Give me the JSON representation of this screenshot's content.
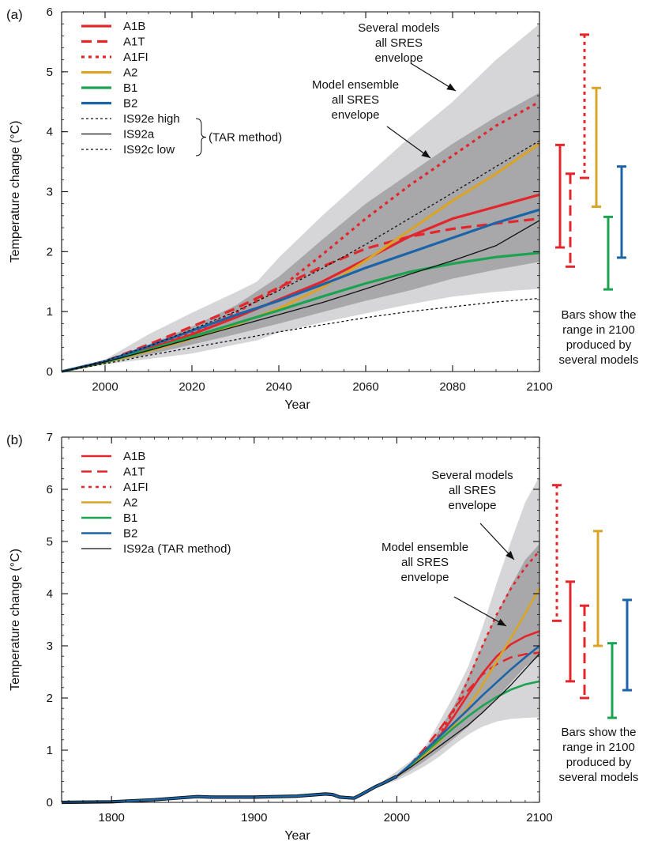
{
  "chart_data": [
    {
      "type": "line",
      "panel_label": "(a)",
      "title": "",
      "xlabel": "Year",
      "ylabel": "Temperature change (°C)",
      "xlim": [
        1990,
        2100
      ],
      "ylim": [
        0,
        6
      ],
      "xticks": [
        2000,
        2020,
        2040,
        2060,
        2080,
        2100
      ],
      "yticks": [
        0,
        1,
        2,
        3,
        4,
        5,
        6
      ],
      "legend_position": "top-left",
      "series": [
        {
          "name": "A1B",
          "color": "#e3262b",
          "dash": "solid",
          "width": 3.2,
          "x": [
            1990,
            2000,
            2010,
            2020,
            2030,
            2040,
            2050,
            2060,
            2070,
            2080,
            2090,
            2100
          ],
          "values": [
            0,
            0.16,
            0.38,
            0.62,
            0.9,
            1.2,
            1.5,
            1.87,
            2.25,
            2.55,
            2.75,
            2.95
          ]
        },
        {
          "name": "A1T",
          "color": "#e3262b",
          "dash": "long",
          "width": 3.2,
          "x": [
            1990,
            2000,
            2010,
            2020,
            2030,
            2040,
            2050,
            2060,
            2070,
            2080,
            2090,
            2100
          ],
          "values": [
            0,
            0.17,
            0.45,
            0.75,
            1.05,
            1.4,
            1.75,
            2.05,
            2.25,
            2.38,
            2.47,
            2.55
          ]
        },
        {
          "name": "A1FI",
          "color": "#e3262b",
          "dash": "dot",
          "width": 3.2,
          "x": [
            1990,
            2000,
            2010,
            2020,
            2030,
            2040,
            2050,
            2060,
            2070,
            2080,
            2090,
            2100
          ],
          "values": [
            0,
            0.16,
            0.38,
            0.65,
            0.98,
            1.38,
            1.95,
            2.55,
            3.1,
            3.6,
            4.1,
            4.5
          ]
        },
        {
          "name": "A2",
          "color": "#d9a428",
          "dash": "solid",
          "width": 3.2,
          "x": [
            1990,
            2000,
            2010,
            2020,
            2030,
            2040,
            2050,
            2060,
            2070,
            2080,
            2090,
            2100
          ],
          "values": [
            0,
            0.15,
            0.34,
            0.55,
            0.78,
            1.05,
            1.4,
            1.85,
            2.35,
            2.85,
            3.3,
            3.8
          ]
        },
        {
          "name": "B1",
          "color": "#1ba351",
          "dash": "solid",
          "width": 3.2,
          "x": [
            1990,
            2000,
            2010,
            2020,
            2030,
            2040,
            2050,
            2060,
            2070,
            2080,
            2090,
            2100
          ],
          "values": [
            0,
            0.16,
            0.36,
            0.58,
            0.8,
            1.02,
            1.25,
            1.47,
            1.66,
            1.8,
            1.91,
            1.98
          ]
        },
        {
          "name": "B2",
          "color": "#1c64a8",
          "dash": "solid",
          "width": 3.2,
          "x": [
            1990,
            2000,
            2010,
            2020,
            2030,
            2040,
            2050,
            2060,
            2070,
            2080,
            2090,
            2100
          ],
          "values": [
            0,
            0.17,
            0.42,
            0.68,
            0.94,
            1.18,
            1.45,
            1.73,
            1.98,
            2.23,
            2.48,
            2.7
          ]
        },
        {
          "name": "IS92e high",
          "color": "#111111",
          "dash": "thin-dot",
          "width": 1.3,
          "x": [
            1990,
            2000,
            2010,
            2020,
            2030,
            2040,
            2050,
            2060,
            2070,
            2080,
            2090,
            2100
          ],
          "values": [
            0,
            0.18,
            0.42,
            0.7,
            1.0,
            1.35,
            1.72,
            2.12,
            2.55,
            2.98,
            3.42,
            3.85
          ]
        },
        {
          "name": "IS92a",
          "color": "#111111",
          "dash": "solid",
          "width": 1.3,
          "x": [
            1990,
            2000,
            2010,
            2020,
            2030,
            2040,
            2050,
            2060,
            2070,
            2080,
            2090,
            2100
          ],
          "values": [
            0,
            0.16,
            0.35,
            0.55,
            0.75,
            0.95,
            1.15,
            1.38,
            1.62,
            1.85,
            2.1,
            2.52
          ]
        },
        {
          "name": "IS92c low",
          "color": "#111111",
          "dash": "thin-dot",
          "width": 1.3,
          "x": [
            1990,
            2000,
            2010,
            2020,
            2030,
            2040,
            2050,
            2060,
            2070,
            2080,
            2090,
            2100
          ],
          "values": [
            0,
            0.13,
            0.27,
            0.4,
            0.53,
            0.66,
            0.78,
            0.9,
            1.0,
            1.08,
            1.16,
            1.22
          ]
        }
      ],
      "legend_group_note": "(TAR method)",
      "envelopes": [
        {
          "name": "Several models all SRES envelope",
          "color": "#d6d6d8",
          "x": [
            1990,
            2000,
            2010,
            2020,
            2030,
            2035,
            2040,
            2050,
            2060,
            2070,
            2080,
            2090,
            2100
          ],
          "upper": [
            0,
            0.2,
            0.62,
            0.98,
            1.32,
            1.5,
            1.9,
            2.6,
            3.25,
            3.9,
            4.5,
            5.2,
            5.8
          ],
          "lower": [
            0,
            0.12,
            0.21,
            0.3,
            0.45,
            0.52,
            0.65,
            0.82,
            0.97,
            1.12,
            1.25,
            1.33,
            1.38
          ]
        },
        {
          "name": "Model ensemble all SRES envelope",
          "color": "#a8a8ab",
          "x": [
            1990,
            2000,
            2010,
            2020,
            2030,
            2040,
            2050,
            2060,
            2070,
            2080,
            2090,
            2100
          ],
          "upper": [
            0,
            0.18,
            0.45,
            0.75,
            1.1,
            1.58,
            2.2,
            2.8,
            3.3,
            3.8,
            4.25,
            4.65
          ],
          "lower": [
            0,
            0.14,
            0.28,
            0.45,
            0.62,
            0.8,
            0.99,
            1.18,
            1.35,
            1.55,
            1.7,
            1.83
          ]
        }
      ],
      "range_bars_2100": [
        {
          "series": "A1B",
          "low": 2.07,
          "high": 3.78
        },
        {
          "series": "A1T",
          "low": 1.75,
          "high": 3.3
        },
        {
          "series": "A1FI",
          "low": 3.23,
          "high": 5.62
        },
        {
          "series": "A2",
          "low": 2.75,
          "high": 4.73
        },
        {
          "series": "B1",
          "low": 1.37,
          "high": 2.58
        },
        {
          "series": "B2",
          "low": 1.9,
          "high": 3.42
        }
      ],
      "annotations": {
        "several_models": [
          "Several models",
          "all SRES",
          "envelope"
        ],
        "ensemble": [
          "Model ensemble",
          "all SRES",
          "envelope"
        ],
        "bars_note": [
          "Bars show the",
          "range in 2100",
          "produced by",
          "several models"
        ]
      }
    },
    {
      "type": "line",
      "panel_label": "(b)",
      "title": "",
      "xlabel": "Year",
      "ylabel": "Temperature change (°C)",
      "xlim": [
        1765,
        2100
      ],
      "ylim": [
        0,
        7
      ],
      "xticks": [
        1800,
        1900,
        2000,
        2100
      ],
      "yticks": [
        0,
        1,
        2,
        3,
        4,
        5,
        6,
        7
      ],
      "legend_position": "top-left",
      "series": [
        {
          "name": "A1B",
          "color": "#e3262b",
          "dash": "solid",
          "width": 2.6,
          "x": [
            2000,
            2010,
            2020,
            2030,
            2040,
            2050,
            2060,
            2070,
            2080,
            2090,
            2100
          ],
          "values": [
            0.5,
            0.72,
            0.97,
            1.27,
            1.65,
            2.07,
            2.47,
            2.8,
            3.03,
            3.18,
            3.28
          ]
        },
        {
          "name": "A1T",
          "color": "#e3262b",
          "dash": "long",
          "width": 2.6,
          "x": [
            2000,
            2010,
            2020,
            2030,
            2040,
            2050,
            2060,
            2070,
            2080,
            2090,
            2100
          ],
          "values": [
            0.5,
            0.74,
            1.05,
            1.4,
            1.78,
            2.15,
            2.45,
            2.65,
            2.78,
            2.84,
            2.87
          ]
        },
        {
          "name": "A1FI",
          "color": "#e3262b",
          "dash": "dot",
          "width": 2.6,
          "x": [
            2000,
            2010,
            2020,
            2030,
            2040,
            2050,
            2060,
            2070,
            2080,
            2090,
            2100
          ],
          "values": [
            0.5,
            0.72,
            0.98,
            1.3,
            1.75,
            2.35,
            3.0,
            3.6,
            4.1,
            4.5,
            4.82
          ]
        },
        {
          "name": "A2",
          "color": "#d9a428",
          "dash": "solid",
          "width": 2.6,
          "x": [
            2000,
            2010,
            2020,
            2030,
            2040,
            2050,
            2060,
            2070,
            2080,
            2090,
            2100
          ],
          "values": [
            0.5,
            0.7,
            0.92,
            1.17,
            1.47,
            1.83,
            2.25,
            2.7,
            3.15,
            3.62,
            4.1
          ]
        },
        {
          "name": "B1",
          "color": "#1ba351",
          "dash": "solid",
          "width": 2.6,
          "x": [
            2000,
            2010,
            2020,
            2030,
            2040,
            2050,
            2060,
            2070,
            2080,
            2090,
            2100
          ],
          "values": [
            0.5,
            0.72,
            0.96,
            1.2,
            1.43,
            1.65,
            1.85,
            2.02,
            2.16,
            2.26,
            2.32
          ]
        },
        {
          "name": "B2",
          "color": "#1c64a8",
          "dash": "solid",
          "width": 2.6,
          "x": [
            2000,
            2010,
            2020,
            2030,
            2040,
            2050,
            2060,
            2070,
            2080,
            2090,
            2100
          ],
          "values": [
            0.5,
            0.74,
            1.0,
            1.26,
            1.52,
            1.78,
            2.05,
            2.3,
            2.55,
            2.78,
            3.0
          ]
        },
        {
          "name": "IS92a (TAR method)",
          "color": "#111111",
          "dash": "solid",
          "width": 1.3,
          "x": [
            2000,
            2010,
            2020,
            2030,
            2040,
            2050,
            2060,
            2070,
            2080,
            2090,
            2100
          ],
          "values": [
            0.5,
            0.68,
            0.88,
            1.08,
            1.28,
            1.48,
            1.72,
            1.98,
            2.25,
            2.55,
            2.85
          ]
        }
      ],
      "historical": {
        "name": "historical",
        "color": "#1c64a8",
        "x": [
          1765,
          1800,
          1830,
          1860,
          1870,
          1880,
          1900,
          1930,
          1950,
          1955,
          1960,
          1970,
          1975,
          1985,
          1990,
          2000
        ],
        "values": [
          0.0,
          0.01,
          0.05,
          0.11,
          0.1,
          0.1,
          0.1,
          0.12,
          0.16,
          0.15,
          0.1,
          0.08,
          0.15,
          0.3,
          0.36,
          0.5
        ]
      },
      "envelopes": [
        {
          "name": "Several models all SRES envelope",
          "color": "#d6d6d8",
          "x": [
            1990,
            2000,
            2010,
            2020,
            2030,
            2040,
            2050,
            2060,
            2070,
            2080,
            2090,
            2100
          ],
          "upper": [
            0.4,
            0.6,
            0.8,
            1.08,
            1.55,
            2.05,
            2.6,
            3.35,
            4.2,
            5.0,
            5.75,
            6.25
          ],
          "lower": [
            0.33,
            0.42,
            0.55,
            0.7,
            0.88,
            1.1,
            1.3,
            1.45,
            1.55,
            1.6,
            1.62,
            1.63
          ]
        },
        {
          "name": "Model ensemble all SRES envelope",
          "color": "#a8a8ab",
          "x": [
            1990,
            2000,
            2010,
            2020,
            2030,
            2040,
            2050,
            2060,
            2070,
            2080,
            2090,
            2100
          ],
          "upper": [
            0.38,
            0.52,
            0.76,
            1.03,
            1.4,
            1.85,
            2.4,
            3.0,
            3.6,
            4.15,
            4.65,
            4.95
          ],
          "lower": [
            0.34,
            0.46,
            0.62,
            0.8,
            1.0,
            1.22,
            1.45,
            1.72,
            2.0,
            2.3,
            2.6,
            2.8
          ]
        }
      ],
      "range_bars_2100": [
        {
          "series": "A1FI",
          "low": 3.48,
          "high": 6.08
        },
        {
          "series": "A1B",
          "low": 2.32,
          "high": 4.23
        },
        {
          "series": "A1T",
          "low": 2.0,
          "high": 3.77
        },
        {
          "series": "A2",
          "low": 3.0,
          "high": 5.2
        },
        {
          "series": "B1",
          "low": 1.62,
          "high": 3.05
        },
        {
          "series": "B2",
          "low": 2.15,
          "high": 3.88
        }
      ],
      "annotations": {
        "several_models": [
          "Several models",
          "all SRES",
          "envelope"
        ],
        "ensemble": [
          "Model ensemble",
          "all SRES",
          "envelope"
        ],
        "bars_note": [
          "Bars show the",
          "range in 2100",
          "produced by",
          "several models"
        ]
      }
    }
  ]
}
